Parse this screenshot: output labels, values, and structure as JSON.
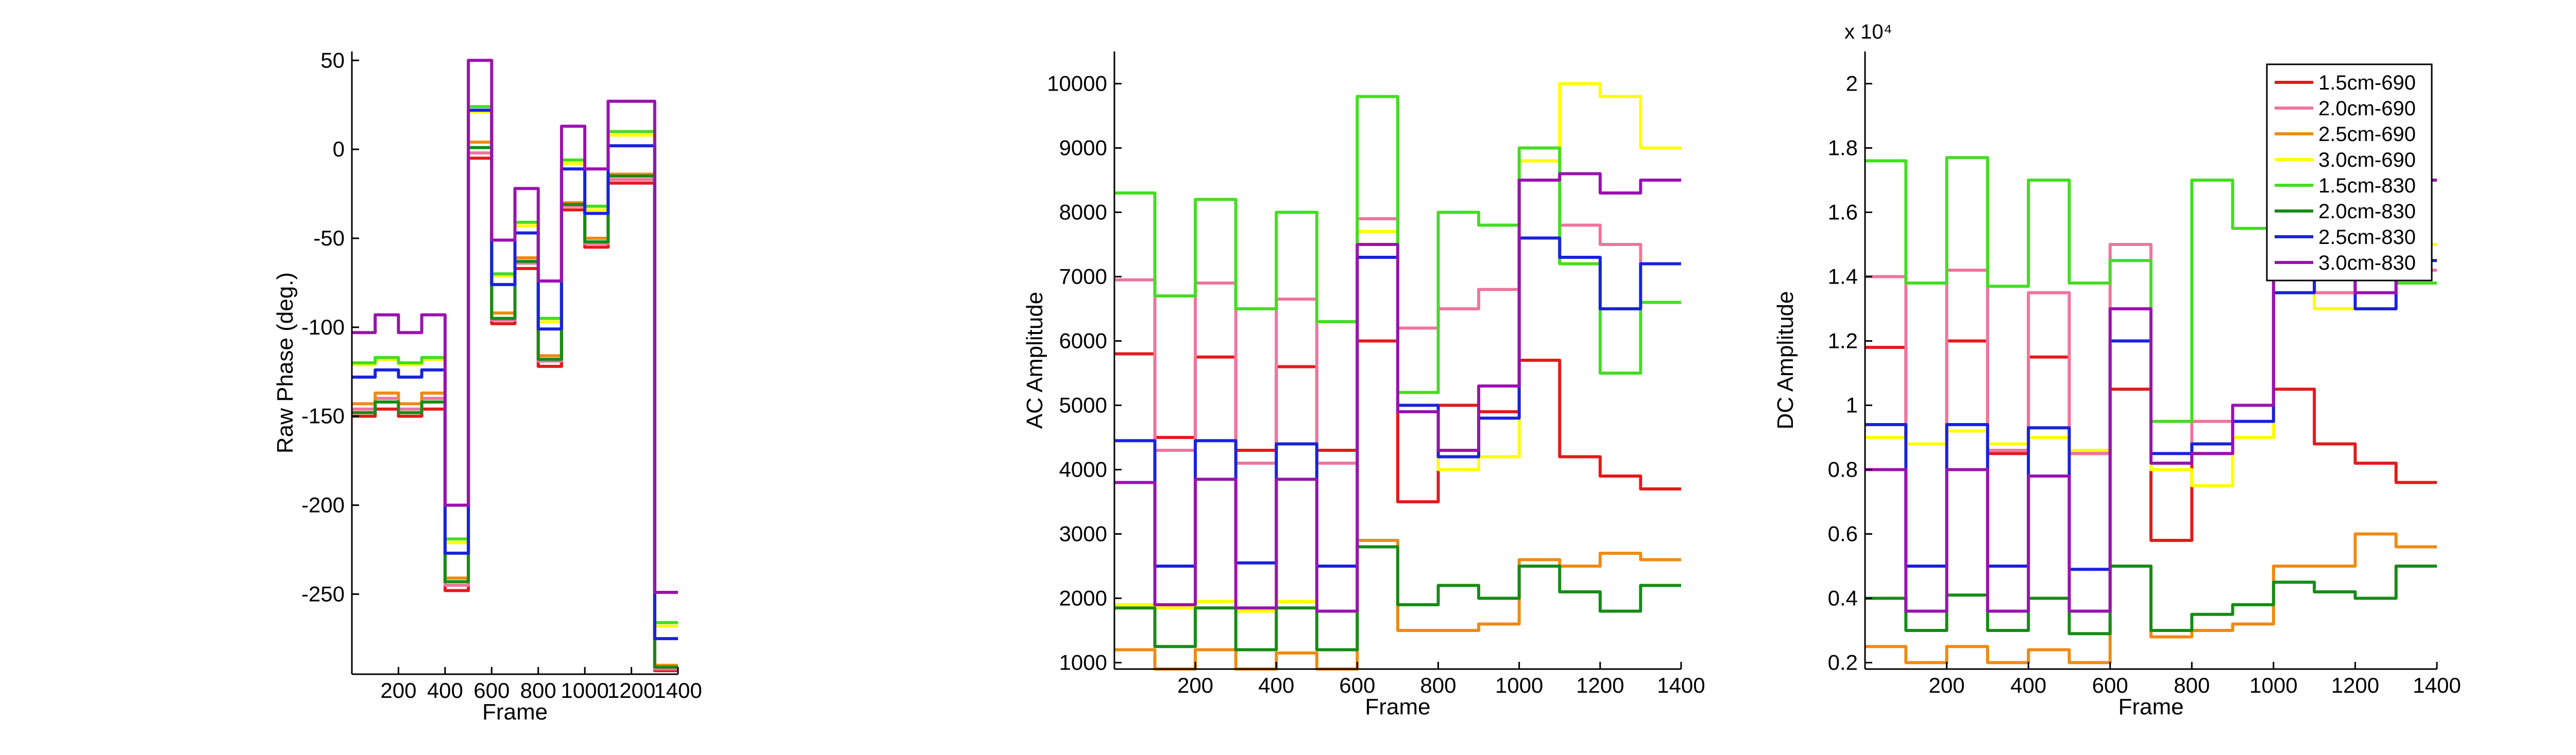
{
  "chart_data": [
    {
      "type": "line",
      "xlabel": "Frame",
      "ylabel": "Raw Phase (deg.)",
      "xlim": [
        0,
        1400
      ],
      "ylim": [
        -295,
        55
      ],
      "xticks": [
        200,
        400,
        600,
        800,
        1000,
        1200,
        1400
      ],
      "yticks": [
        50,
        0,
        -50,
        -100,
        -150,
        -200,
        -250
      ],
      "segments": [
        0,
        100,
        200,
        300,
        400,
        500,
        600,
        700,
        800,
        900,
        1000,
        1100,
        1300,
        1400
      ],
      "series": [
        {
          "color": "#e41a1c",
          "values": [
            -150,
            -146,
            -150,
            -146,
            -248,
            -5,
            -98,
            -67,
            -122,
            -34,
            -55,
            -19,
            -293
          ]
        },
        {
          "color": "#f1749e",
          "values": [
            -146,
            -140,
            -146,
            -140,
            -245,
            -2,
            -96,
            -64,
            -119,
            -32,
            -53,
            -17,
            -292
          ]
        },
        {
          "color": "#f08a12",
          "values": [
            -143,
            -137,
            -143,
            -137,
            -241,
            4,
            -92,
            -61,
            -116,
            -30,
            -50,
            -14,
            -290
          ]
        },
        {
          "color": "#ffff00",
          "values": [
            -121,
            -118,
            -121,
            -118,
            -221,
            21,
            -71,
            -43,
            -97,
            -8,
            -34,
            8,
            -268
          ]
        },
        {
          "color": "#44dd22",
          "values": [
            -120,
            -117,
            -120,
            -117,
            -219,
            24,
            -70,
            -41,
            -95,
            -6,
            -32,
            10,
            -266
          ]
        },
        {
          "color": "#168c16",
          "values": [
            -148,
            -142,
            -148,
            -142,
            -243,
            1,
            -95,
            -63,
            -118,
            -31,
            -52,
            -15,
            -291
          ]
        },
        {
          "color": "#1a22dd",
          "values": [
            -128,
            -124,
            -128,
            -124,
            -227,
            22,
            -76,
            -47,
            -101,
            -11,
            -36,
            2,
            -275
          ]
        },
        {
          "color": "#9a12b0",
          "values": [
            -103,
            -93,
            -103,
            -93,
            -200,
            50,
            -51,
            -22,
            -74,
            13,
            -11,
            27,
            -249
          ]
        }
      ]
    },
    {
      "type": "line",
      "xlabel": "Frame",
      "ylabel": "AC Amplitude",
      "xlim": [
        0,
        1400
      ],
      "ylim": [
        900,
        10500
      ],
      "xticks": [
        200,
        400,
        600,
        800,
        1000,
        1200,
        1400
      ],
      "yticks": [
        10000,
        9000,
        8000,
        7000,
        6000,
        5000,
        4000,
        3000,
        2000,
        1000
      ],
      "segments": [
        0,
        100,
        200,
        300,
        400,
        500,
        600,
        700,
        800,
        900,
        1000,
        1100,
        1200,
        1300,
        1400
      ],
      "series": [
        {
          "color": "#e41a1c",
          "values": [
            5800,
            4500,
            5750,
            4300,
            5600,
            4300,
            6000,
            3500,
            5000,
            4900,
            5700,
            4200,
            3900,
            3700
          ]
        },
        {
          "color": "#f1749e",
          "values": [
            6950,
            4300,
            6900,
            4100,
            6650,
            4100,
            7900,
            6200,
            6500,
            6800,
            8500,
            7800,
            7500,
            7200
          ]
        },
        {
          "color": "#f08a12",
          "values": [
            1200,
            900,
            1200,
            900,
            1150,
            900,
            2900,
            1500,
            1500,
            1600,
            2600,
            2500,
            2700,
            2600
          ]
        },
        {
          "color": "#ffff00",
          "values": [
            1900,
            1850,
            1950,
            1800,
            1950,
            1800,
            7700,
            5000,
            4000,
            4200,
            8800,
            10000,
            9800,
            9000
          ]
        },
        {
          "color": "#44dd22",
          "values": [
            8300,
            6700,
            8200,
            6500,
            8000,
            6300,
            9800,
            5200,
            8000,
            7800,
            9000,
            7200,
            5500,
            6600
          ]
        },
        {
          "color": "#168c16",
          "values": [
            1850,
            1250,
            1850,
            1200,
            1850,
            1200,
            2800,
            1900,
            2200,
            2000,
            2500,
            2100,
            1800,
            2200
          ]
        },
        {
          "color": "#1a22dd",
          "values": [
            4450,
            2500,
            4450,
            2550,
            4400,
            2500,
            7300,
            5000,
            4200,
            4800,
            7600,
            7300,
            6500,
            7200
          ]
        },
        {
          "color": "#9a12b0",
          "values": [
            3800,
            1900,
            3850,
            1850,
            3850,
            1800,
            7500,
            4900,
            4300,
            5300,
            8500,
            8600,
            8300,
            8500
          ]
        }
      ]
    },
    {
      "type": "line",
      "xlabel": "Frame",
      "ylabel": "DC Amplitude",
      "exponent_label": "x 10⁴",
      "xlim": [
        0,
        1400
      ],
      "ylim": [
        0.18,
        2.1
      ],
      "xticks": [
        200,
        400,
        600,
        800,
        1000,
        1200,
        1400
      ],
      "yticks": [
        2,
        1.8,
        1.6,
        1.4,
        1.2,
        1,
        0.8,
        0.6,
        0.4,
        0.2
      ],
      "segments": [
        0,
        100,
        200,
        300,
        400,
        500,
        600,
        700,
        800,
        900,
        1000,
        1100,
        1200,
        1300,
        1400
      ],
      "series": [
        {
          "color": "#e41a1c",
          "values": [
            1.18,
            0.88,
            1.2,
            0.85,
            1.15,
            0.85,
            1.05,
            0.58,
            0.85,
            0.9,
            1.05,
            0.88,
            0.82,
            0.76
          ]
        },
        {
          "color": "#f1749e",
          "values": [
            1.4,
            0.88,
            1.42,
            0.86,
            1.35,
            0.85,
            1.5,
            0.82,
            0.95,
            1.0,
            1.45,
            1.35,
            1.4,
            1.42
          ]
        },
        {
          "color": "#f08a12",
          "values": [
            0.25,
            0.2,
            0.25,
            0.2,
            0.24,
            0.2,
            0.5,
            0.28,
            0.3,
            0.32,
            0.5,
            0.5,
            0.6,
            0.56
          ]
        },
        {
          "color": "#ffff00",
          "values": [
            0.9,
            0.88,
            0.92,
            0.88,
            0.9,
            0.86,
            1.2,
            0.8,
            0.75,
            0.9,
            1.4,
            1.3,
            1.5,
            1.5
          ]
        },
        {
          "color": "#44dd22",
          "values": [
            1.76,
            1.38,
            1.77,
            1.37,
            1.7,
            1.38,
            1.45,
            0.95,
            1.7,
            1.55,
            1.8,
            1.55,
            1.45,
            1.38
          ]
        },
        {
          "color": "#168c16",
          "values": [
            0.4,
            0.3,
            0.41,
            0.3,
            0.4,
            0.29,
            0.5,
            0.3,
            0.35,
            0.38,
            0.45,
            0.42,
            0.4,
            0.5
          ]
        },
        {
          "color": "#1a22dd",
          "values": [
            0.94,
            0.5,
            0.94,
            0.5,
            0.93,
            0.49,
            1.2,
            0.85,
            0.88,
            0.95,
            1.35,
            1.45,
            1.3,
            1.45
          ]
        },
        {
          "color": "#9a12b0",
          "values": [
            0.8,
            0.36,
            0.8,
            0.36,
            0.78,
            0.36,
            1.3,
            0.82,
            0.85,
            1.0,
            1.4,
            1.5,
            1.35,
            1.7
          ]
        }
      ],
      "legend": {
        "placement": "top-right",
        "entries": [
          {
            "label": "1.5cm-690",
            "color": "#e41a1c"
          },
          {
            "label": "2.0cm-690",
            "color": "#f1749e"
          },
          {
            "label": "2.5cm-690",
            "color": "#f08a12"
          },
          {
            "label": "3.0cm-690",
            "color": "#ffff00"
          },
          {
            "label": "1.5cm-830",
            "color": "#44dd22"
          },
          {
            "label": "2.0cm-830",
            "color": "#168c16"
          },
          {
            "label": "2.5cm-830",
            "color": "#1a22dd"
          },
          {
            "label": "3.0cm-830",
            "color": "#9a12b0"
          }
        ]
      }
    }
  ]
}
